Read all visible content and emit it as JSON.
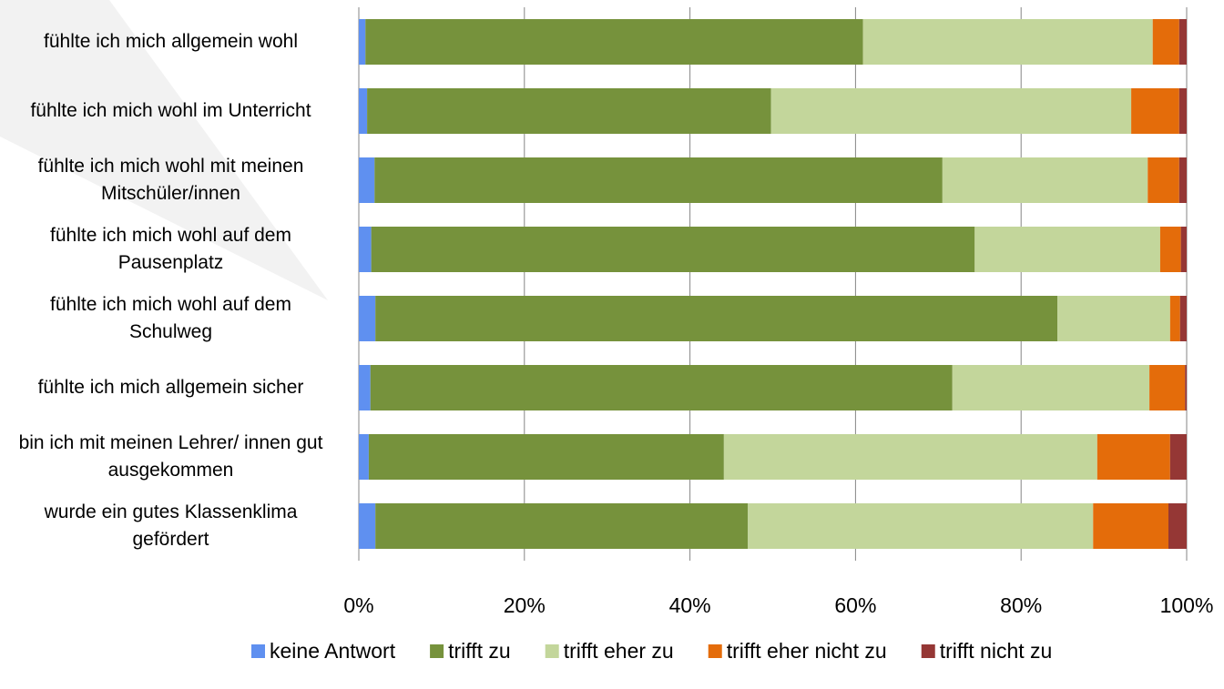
{
  "chart_data": {
    "type": "stacked-bar-horizontal",
    "categories": [
      "fühlte ich mich allgemein wohl",
      "fühlte ich mich wohl im Unterricht",
      "fühlte ich mich wohl mit meinen Mitschüler/innen",
      "fühlte ich mich wohl auf dem Pausenplatz",
      "fühlte ich mich wohl auf dem Schulweg",
      "fühlte ich mich allgemein sicher",
      "bin ich mit meinen Lehrer/ innen gut ausgekommen",
      "wurde ein gutes Klassenklima gefördert"
    ],
    "series": [
      {
        "name": "keine Antwort",
        "color": "#5f90f0",
        "values": [
          0.8,
          1.0,
          1.9,
          1.5,
          2.0,
          1.4,
          1.2,
          2.0
        ]
      },
      {
        "name": "trifft zu",
        "color": "#76923c",
        "values": [
          60.1,
          48.8,
          68.6,
          72.9,
          82.4,
          70.3,
          42.9,
          45.0
        ]
      },
      {
        "name": "trifft eher zu",
        "color": "#c3d69b",
        "values": [
          35.0,
          43.5,
          24.8,
          22.4,
          13.6,
          23.8,
          45.1,
          41.7
        ]
      },
      {
        "name": "trifft eher nicht zu",
        "color": "#e46c0a",
        "values": [
          3.2,
          5.8,
          3.8,
          2.5,
          1.2,
          4.3,
          8.8,
          9.1
        ]
      },
      {
        "name": "trifft nicht zu",
        "color": "#953735",
        "values": [
          0.9,
          0.9,
          0.9,
          0.7,
          0.8,
          0.2,
          2.0,
          2.2
        ]
      }
    ],
    "xlim": [
      0,
      100
    ],
    "xticks": [
      {
        "value": 0,
        "label": "0%"
      },
      {
        "value": 20,
        "label": "20%"
      },
      {
        "value": 40,
        "label": "40%"
      },
      {
        "value": 60,
        "label": "60%"
      },
      {
        "value": 80,
        "label": "80%"
      },
      {
        "value": 100,
        "label": "100%"
      }
    ],
    "grid": true,
    "legend": "bottom"
  }
}
